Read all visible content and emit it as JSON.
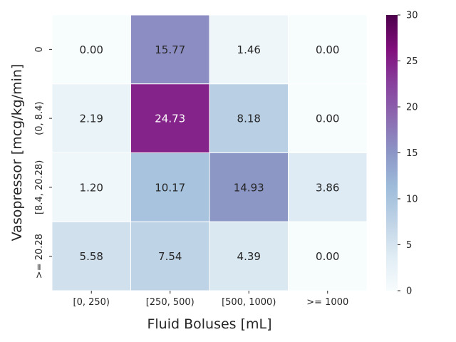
{
  "chart_data": {
    "type": "heatmap",
    "xlabel": "Fluid Boluses [mL]",
    "ylabel": "Vasopressor [mcg/kg/min]",
    "x_categories": [
      "[0, 250)",
      "[250, 500)",
      "[500, 1000)",
      ">= 1000"
    ],
    "y_categories": [
      "0",
      "(0, 8.4)",
      "[8.4, 20.28)",
      ">= 20.28"
    ],
    "values": [
      [
        0.0,
        15.77,
        1.46,
        0.0
      ],
      [
        2.19,
        24.73,
        8.18,
        0.0
      ],
      [
        1.2,
        10.17,
        14.93,
        3.86
      ],
      [
        5.58,
        7.54,
        4.39,
        0.0
      ]
    ],
    "value_labels": [
      [
        "0.00",
        "15.77",
        "1.46",
        "0.00"
      ],
      [
        "2.19",
        "24.73",
        "8.18",
        "0.00"
      ],
      [
        "1.20",
        "10.17",
        "14.93",
        "3.86"
      ],
      [
        "5.58",
        "7.54",
        "4.39",
        "0.00"
      ]
    ],
    "colorbar": {
      "range": [
        0,
        30
      ],
      "ticks": [
        0,
        5,
        10,
        15,
        20,
        25,
        30
      ],
      "tick_labels": [
        "0",
        "5",
        "10",
        "15",
        "20",
        "25",
        "30"
      ],
      "colormap": "BuPu"
    },
    "colors": {
      "low": "#f7fcfd",
      "high": "#4d004b",
      "text_dark": "#262626",
      "text_light": "#ffffff"
    }
  }
}
